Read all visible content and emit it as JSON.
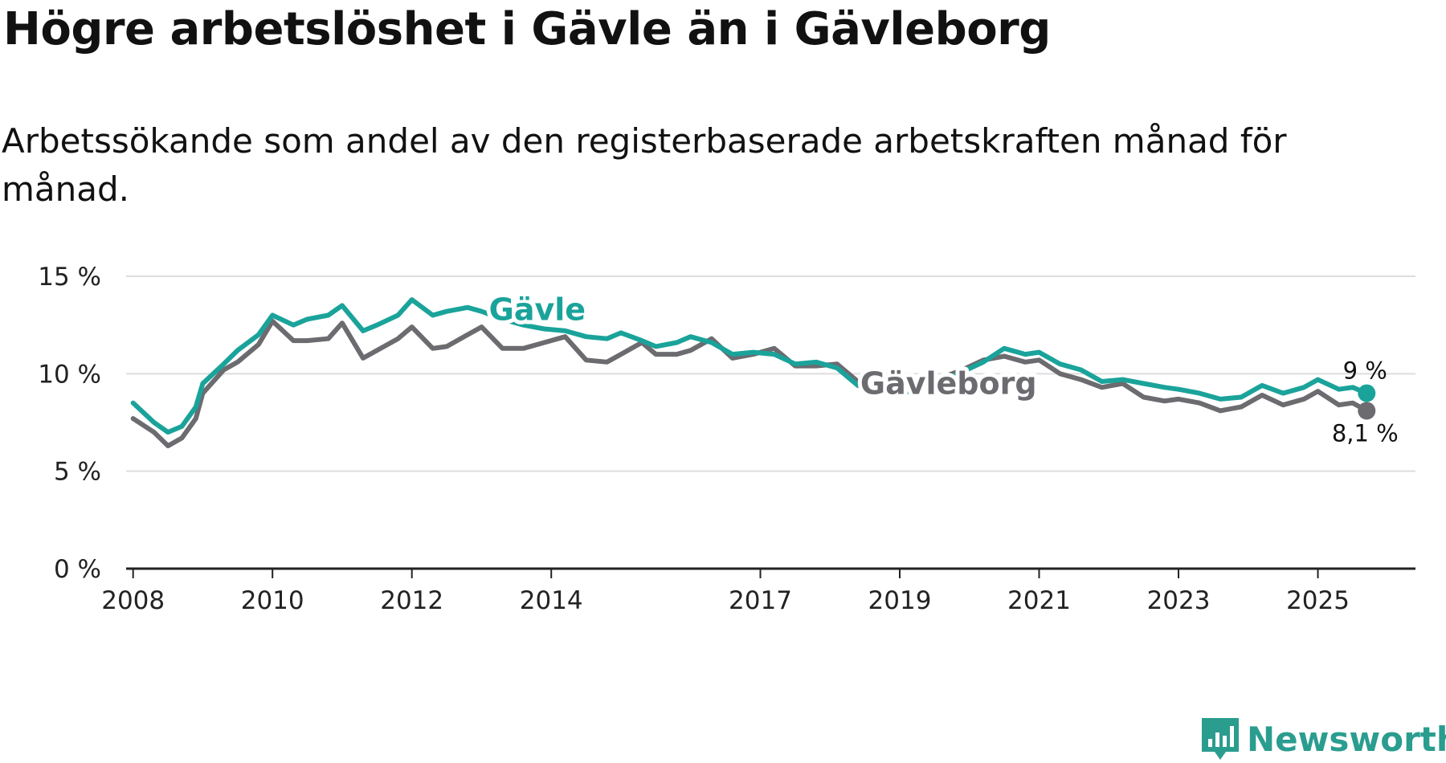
{
  "title": "Högre arbetslöshet i Gävle än i Gävleborg",
  "subtitle": "Arbetssökande som andel av den registerbaserade arbetskraften månad för månad.",
  "logo": {
    "text": "Newsworthy",
    "color": "#2a9d8f",
    "icon": "newsworthy-logo-icon"
  },
  "colors": {
    "gavle": "#1aa39a",
    "gavleborg": "#6b6b70",
    "grid": "#dddddd",
    "axis": "#222222"
  },
  "chart_data": {
    "type": "line",
    "title": "Högre arbetslöshet i Gävle än i Gävleborg",
    "xlabel": "",
    "ylabel": "",
    "ylim": [
      0,
      15
    ],
    "xlim": [
      2007.9,
      2026.4
    ],
    "y_ticks": [
      0,
      5,
      10,
      15
    ],
    "y_tick_labels": [
      "0 %",
      "5 %",
      "10 %",
      "15 %"
    ],
    "x_ticks": [
      2008,
      2010,
      2012,
      2014,
      2017,
      2019,
      2021,
      2023,
      2025
    ],
    "x_tick_labels": [
      "2008",
      "2010",
      "2012",
      "2014",
      "2017",
      "2019",
      "2021",
      "2023",
      "2025"
    ],
    "grid": true,
    "series": [
      {
        "name": "Gävle",
        "label": "Gävle",
        "end_label": "9 %",
        "x": [
          2008.0,
          2008.3,
          2008.5,
          2008.7,
          2008.9,
          2009.0,
          2009.3,
          2009.5,
          2009.8,
          2010.0,
          2010.3,
          2010.5,
          2010.8,
          2011.0,
          2011.3,
          2011.5,
          2011.8,
          2012.0,
          2012.3,
          2012.5,
          2012.8,
          2013.0,
          2013.3,
          2013.6,
          2013.9,
          2014.2,
          2014.5,
          2014.8,
          2015.0,
          2015.3,
          2015.5,
          2015.8,
          2016.0,
          2016.3,
          2016.6,
          2016.9,
          2017.2,
          2017.5,
          2017.8,
          2018.1,
          2018.4,
          2018.7,
          2019.0,
          2019.3,
          2019.6,
          2019.9,
          2020.2,
          2020.5,
          2020.8,
          2021.0,
          2021.3,
          2021.6,
          2021.9,
          2022.2,
          2022.5,
          2022.8,
          2023.0,
          2023.3,
          2023.6,
          2023.9,
          2024.2,
          2024.5,
          2024.8,
          2025.0,
          2025.3,
          2025.5,
          2025.7
        ],
        "values": [
          8.5,
          7.5,
          7.0,
          7.3,
          8.3,
          9.5,
          10.5,
          11.2,
          12.0,
          13.0,
          12.5,
          12.8,
          13.0,
          13.5,
          12.2,
          12.5,
          13.0,
          13.8,
          13.0,
          13.2,
          13.4,
          13.2,
          12.8,
          12.5,
          12.3,
          12.2,
          11.9,
          11.8,
          12.1,
          11.7,
          11.4,
          11.6,
          11.9,
          11.6,
          11.0,
          11.1,
          11.0,
          10.5,
          10.6,
          10.3,
          9.4,
          9.0,
          9.0,
          9.2,
          9.6,
          10.1,
          10.6,
          11.3,
          11.0,
          11.1,
          10.5,
          10.2,
          9.6,
          9.7,
          9.5,
          9.3,
          9.2,
          9.0,
          8.7,
          8.8,
          9.4,
          9.0,
          9.3,
          9.7,
          9.2,
          9.3,
          9.0
        ]
      },
      {
        "name": "Gävleborg",
        "label": "Gävleborg",
        "end_label": "8,1 %",
        "x": [
          2008.0,
          2008.3,
          2008.5,
          2008.7,
          2008.9,
          2009.0,
          2009.3,
          2009.5,
          2009.8,
          2010.0,
          2010.3,
          2010.5,
          2010.8,
          2011.0,
          2011.3,
          2011.5,
          2011.8,
          2012.0,
          2012.3,
          2012.5,
          2012.8,
          2013.0,
          2013.3,
          2013.6,
          2013.9,
          2014.2,
          2014.5,
          2014.8,
          2015.0,
          2015.3,
          2015.5,
          2015.8,
          2016.0,
          2016.3,
          2016.6,
          2016.9,
          2017.2,
          2017.5,
          2017.8,
          2018.1,
          2018.4,
          2018.7,
          2019.0,
          2019.3,
          2019.6,
          2019.9,
          2020.2,
          2020.5,
          2020.8,
          2021.0,
          2021.3,
          2021.6,
          2021.9,
          2022.2,
          2022.5,
          2022.8,
          2023.0,
          2023.3,
          2023.6,
          2023.9,
          2024.2,
          2024.5,
          2024.8,
          2025.0,
          2025.3,
          2025.5,
          2025.7
        ],
        "values": [
          7.7,
          7.0,
          6.3,
          6.7,
          7.7,
          9.0,
          10.2,
          10.6,
          11.5,
          12.7,
          11.7,
          11.7,
          11.8,
          12.6,
          10.8,
          11.2,
          11.8,
          12.4,
          11.3,
          11.4,
          12.0,
          12.4,
          11.3,
          11.3,
          11.6,
          11.9,
          10.7,
          10.6,
          11.0,
          11.6,
          11.0,
          11.0,
          11.2,
          11.8,
          10.8,
          11.0,
          11.3,
          10.4,
          10.4,
          10.5,
          9.6,
          9.1,
          9.0,
          9.4,
          9.8,
          10.2,
          10.7,
          10.9,
          10.6,
          10.7,
          10.0,
          9.7,
          9.3,
          9.5,
          8.8,
          8.6,
          8.7,
          8.5,
          8.1,
          8.3,
          8.9,
          8.4,
          8.7,
          9.1,
          8.4,
          8.5,
          8.1
        ]
      }
    ]
  }
}
